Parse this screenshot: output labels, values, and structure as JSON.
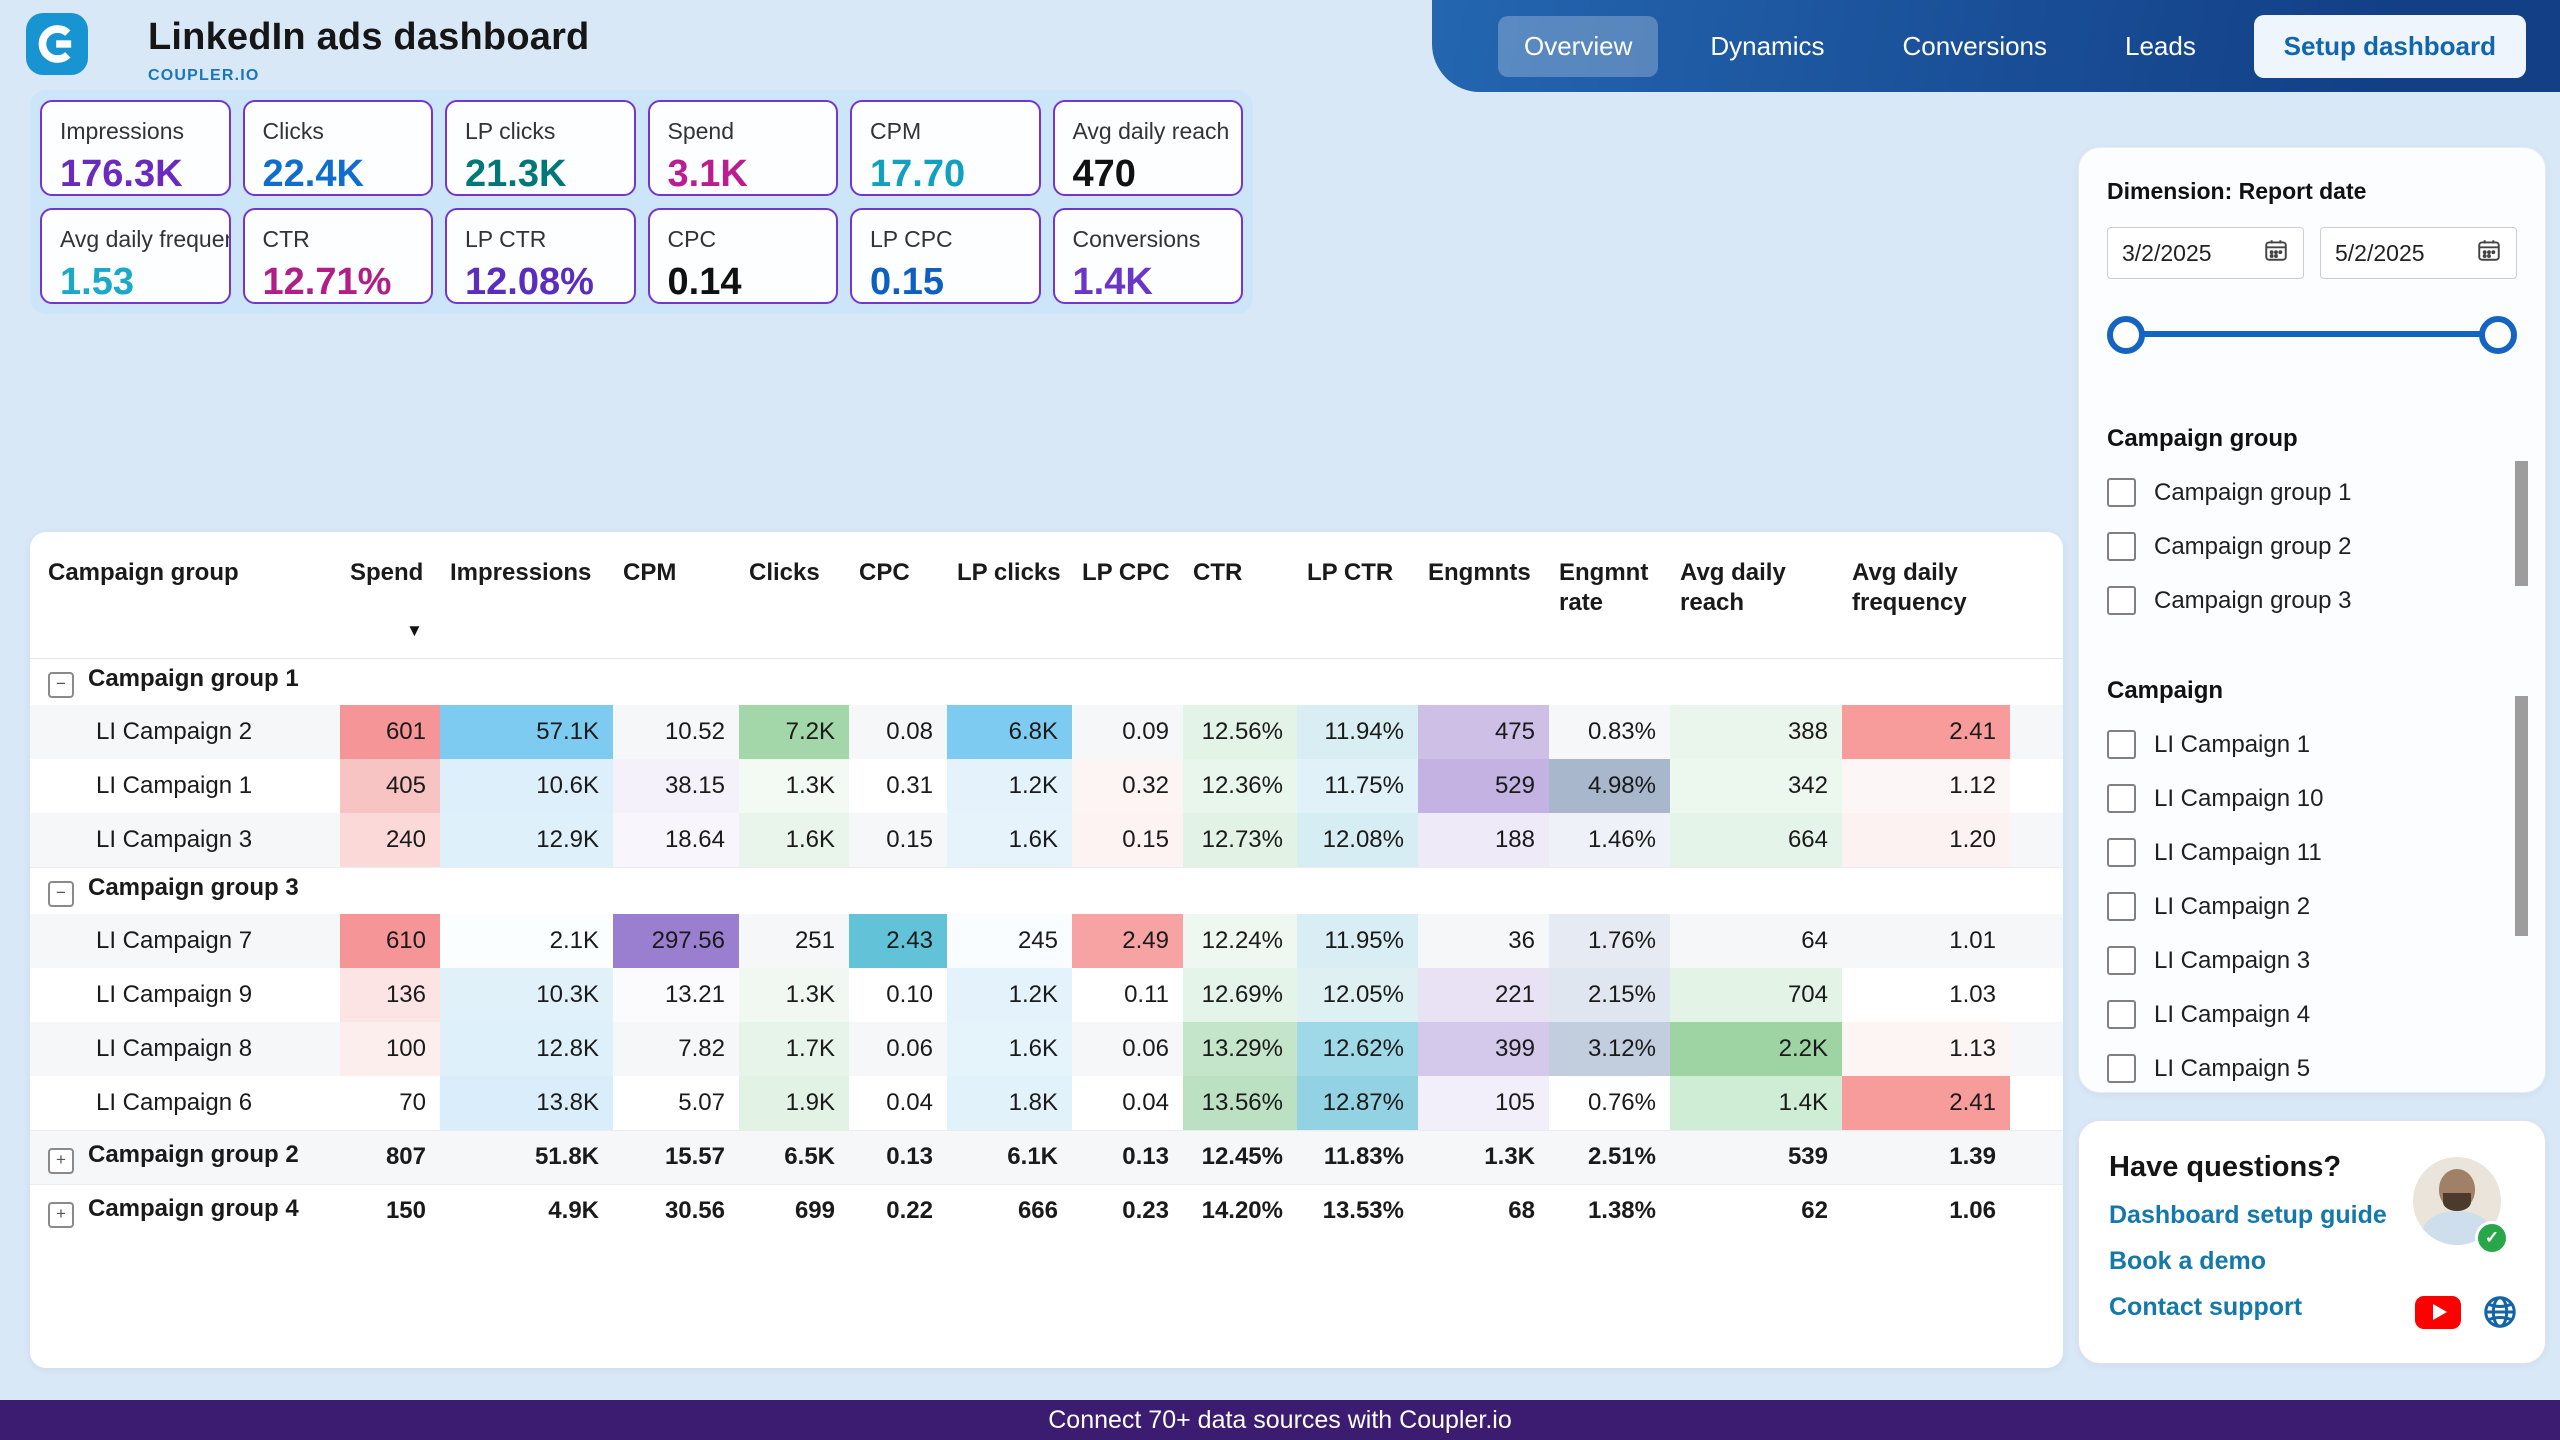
{
  "header": {
    "title": "LinkedIn ads dashboard",
    "brand": "COUPLER.IO",
    "nav": [
      {
        "label": "Overview",
        "active": true
      },
      {
        "label": "Dynamics",
        "active": false
      },
      {
        "label": "Conversions",
        "active": false
      },
      {
        "label": "Leads",
        "active": false
      }
    ],
    "setup_button": "Setup dashboard"
  },
  "kpis": [
    {
      "label": "Impressions",
      "value": "176.3K",
      "color": "#6a2abf"
    },
    {
      "label": "Clicks",
      "value": "22.4K",
      "color": "#0f6ecd"
    },
    {
      "label": "LP clicks",
      "value": "21.3K",
      "color": "#00787a"
    },
    {
      "label": "Spend",
      "value": "3.1K",
      "color": "#bb1c8f"
    },
    {
      "label": "CPM",
      "value": "17.70",
      "color": "#12a0c0"
    },
    {
      "label": "Avg daily reach",
      "value": "470",
      "color": "#111111"
    },
    {
      "label": "Avg daily frequency",
      "value": "1.53",
      "color": "#1ba9c9"
    },
    {
      "label": "CTR",
      "value": "12.71%",
      "color": "#b01e86"
    },
    {
      "label": "LP CTR",
      "value": "12.08%",
      "color": "#5b2dbe"
    },
    {
      "label": "CPC",
      "value": "0.14",
      "color": "#111111"
    },
    {
      "label": "LP CPC",
      "value": "0.15",
      "color": "#0d5fc0"
    },
    {
      "label": "Conversions",
      "value": "1.4K",
      "color": "#6a35c9"
    }
  ],
  "table": {
    "columns": [
      "Campaign group",
      "Spend",
      "Impressions",
      "CPM",
      "Clicks",
      "CPC",
      "LP clicks",
      "LP CPC",
      "CTR",
      "LP CTR",
      "Engmnts",
      "Engmnt rate",
      "Avg daily reach",
      "Avg daily frequency"
    ],
    "sort": {
      "column": "Spend",
      "direction": "desc",
      "glyph": "▼"
    },
    "rows": [
      {
        "type": "group-label",
        "toggle": "−",
        "name": "Campaign group 1",
        "cells": []
      },
      {
        "type": "campaign",
        "name": "LI Campaign 2",
        "cells": [
          {
            "v": "601",
            "bg": "#f59598"
          },
          {
            "v": "57.1K",
            "bg": "#7ecbf1"
          },
          {
            "v": "10.52"
          },
          {
            "v": "7.2K",
            "bg": "#a3d6a8"
          },
          {
            "v": "0.08"
          },
          {
            "v": "6.8K",
            "bg": "#7ecbf1"
          },
          {
            "v": "0.09"
          },
          {
            "v": "12.56%",
            "bg": "#e3f3e6"
          },
          {
            "v": "11.94%",
            "bg": "#d9eef3"
          },
          {
            "v": "475",
            "bg": "#cdbfe6"
          },
          {
            "v": "0.83%"
          },
          {
            "v": "388",
            "bg": "#eaf6ec"
          },
          {
            "v": "2.41",
            "bg": "#f89b9b"
          }
        ]
      },
      {
        "type": "campaign",
        "name": "LI Campaign 1",
        "cells": [
          {
            "v": "405",
            "bg": "#f8c3c3"
          },
          {
            "v": "10.6K",
            "bg": "#ddeffa"
          },
          {
            "v": "38.15",
            "bg": "#f4f1fa"
          },
          {
            "v": "1.3K",
            "bg": "#f3faf4"
          },
          {
            "v": "0.31"
          },
          {
            "v": "1.2K",
            "bg": "#e3f2fb"
          },
          {
            "v": "0.32",
            "bg": "#fdf4f4"
          },
          {
            "v": "12.36%",
            "bg": "#e9f6eb"
          },
          {
            "v": "11.75%",
            "bg": "#e0f1f7"
          },
          {
            "v": "529",
            "bg": "#c3b2e2"
          },
          {
            "v": "4.98%",
            "bg": "#a8b7cb"
          },
          {
            "v": "342",
            "bg": "#ecf7ee"
          },
          {
            "v": "1.12",
            "bg": "#fdf6f6"
          }
        ]
      },
      {
        "type": "campaign",
        "name": "LI Campaign 3",
        "cells": [
          {
            "v": "240",
            "bg": "#fbd9d9"
          },
          {
            "v": "12.9K",
            "bg": "#def0fa"
          },
          {
            "v": "18.64",
            "bg": "#f8f6fc"
          },
          {
            "v": "1.6K",
            "bg": "#e9f5ea"
          },
          {
            "v": "0.15"
          },
          {
            "v": "1.6K",
            "bg": "#e6f3fb"
          },
          {
            "v": "0.15",
            "bg": "#fdf3f3"
          },
          {
            "v": "12.73%",
            "bg": "#e2f3e5"
          },
          {
            "v": "12.08%",
            "bg": "#d7edf4"
          },
          {
            "v": "188",
            "bg": "#efeaf8"
          },
          {
            "v": "1.46%",
            "bg": "#eef2f8"
          },
          {
            "v": "664",
            "bg": "#e5f4e8"
          },
          {
            "v": "1.20",
            "bg": "#fdf2f2"
          }
        ]
      },
      {
        "type": "group-label",
        "toggle": "−",
        "name": "Campaign group 3",
        "cells": []
      },
      {
        "type": "campaign",
        "name": "LI Campaign 7",
        "cells": [
          {
            "v": "610",
            "bg": "#f59598"
          },
          {
            "v": "2.1K",
            "bg": "#fbfeff"
          },
          {
            "v": "297.56",
            "bg": "#9a7fd0"
          },
          {
            "v": "251"
          },
          {
            "v": "2.43",
            "bg": "#62c3d8"
          },
          {
            "v": "245",
            "bg": "#fafdff"
          },
          {
            "v": "2.49",
            "bg": "#f7a3a3"
          },
          {
            "v": "12.24%",
            "bg": "#eef8f0"
          },
          {
            "v": "11.95%",
            "bg": "#d9eef4"
          },
          {
            "v": "36"
          },
          {
            "v": "1.76%",
            "bg": "#e6ebf3"
          },
          {
            "v": "64"
          },
          {
            "v": "1.01"
          }
        ]
      },
      {
        "type": "campaign",
        "name": "LI Campaign 9",
        "cells": [
          {
            "v": "136",
            "bg": "#fce4e4"
          },
          {
            "v": "10.3K",
            "bg": "#e0f1fa"
          },
          {
            "v": "13.21",
            "bg": "#fbfafd"
          },
          {
            "v": "1.3K",
            "bg": "#f0f8f1"
          },
          {
            "v": "0.10"
          },
          {
            "v": "1.2K",
            "bg": "#e4f3fb"
          },
          {
            "v": "0.11"
          },
          {
            "v": "12.69%",
            "bg": "#e5f4e8"
          },
          {
            "v": "12.05%",
            "bg": "#dff0f2"
          },
          {
            "v": "221",
            "bg": "#e9e2f5"
          },
          {
            "v": "2.15%",
            "bg": "#dfe6f0"
          },
          {
            "v": "704",
            "bg": "#e3f3e6"
          },
          {
            "v": "1.03"
          }
        ]
      },
      {
        "type": "campaign",
        "name": "LI Campaign 8",
        "cells": [
          {
            "v": "100",
            "bg": "#fdeeee"
          },
          {
            "v": "12.8K",
            "bg": "#def0fa"
          },
          {
            "v": "7.82"
          },
          {
            "v": "1.7K",
            "bg": "#e7f4e9"
          },
          {
            "v": "0.06"
          },
          {
            "v": "1.6K",
            "bg": "#e5f3fb"
          },
          {
            "v": "0.06"
          },
          {
            "v": "13.29%",
            "bg": "#c4e5c9"
          },
          {
            "v": "12.62%",
            "bg": "#9fd8e6"
          },
          {
            "v": "399",
            "bg": "#d5c9eb"
          },
          {
            "v": "3.12%",
            "bg": "#c2cddd"
          },
          {
            "v": "2.2K",
            "bg": "#9ed3a4"
          },
          {
            "v": "1.13",
            "bg": "#fdf4f4"
          }
        ]
      },
      {
        "type": "campaign",
        "name": "LI Campaign 6",
        "cells": [
          {
            "v": "70"
          },
          {
            "v": "13.8K",
            "bg": "#d9eefa"
          },
          {
            "v": "5.07"
          },
          {
            "v": "1.9K",
            "bg": "#e2f2e4"
          },
          {
            "v": "0.04"
          },
          {
            "v": "1.8K",
            "bg": "#e2f2fb"
          },
          {
            "v": "0.04"
          },
          {
            "v": "13.56%",
            "bg": "#bce1c2"
          },
          {
            "v": "12.87%",
            "bg": "#92d2e2"
          },
          {
            "v": "105",
            "bg": "#f3effa"
          },
          {
            "v": "0.76%"
          },
          {
            "v": "1.4K",
            "bg": "#cfecd4"
          },
          {
            "v": "2.41",
            "bg": "#f89b9b"
          }
        ]
      },
      {
        "type": "group-agg",
        "toggle": "+",
        "name": "Campaign group 2",
        "cells": [
          {
            "v": "807"
          },
          {
            "v": "51.8K"
          },
          {
            "v": "15.57"
          },
          {
            "v": "6.5K"
          },
          {
            "v": "0.13"
          },
          {
            "v": "6.1K"
          },
          {
            "v": "0.13"
          },
          {
            "v": "12.45%"
          },
          {
            "v": "11.83%"
          },
          {
            "v": "1.3K"
          },
          {
            "v": "2.51%"
          },
          {
            "v": "539"
          },
          {
            "v": "1.39"
          }
        ]
      },
      {
        "type": "group-agg",
        "toggle": "+",
        "name": "Campaign group 4",
        "cells": [
          {
            "v": "150"
          },
          {
            "v": "4.9K"
          },
          {
            "v": "30.56"
          },
          {
            "v": "699"
          },
          {
            "v": "0.22"
          },
          {
            "v": "666"
          },
          {
            "v": "0.23"
          },
          {
            "v": "14.20%"
          },
          {
            "v": "13.53%"
          },
          {
            "v": "68"
          },
          {
            "v": "1.38%"
          },
          {
            "v": "62"
          },
          {
            "v": "1.06"
          }
        ]
      }
    ]
  },
  "sidebar": {
    "dimension_label": "Dimension: Report date",
    "date_from": "3/2/2025",
    "date_to": "5/2/2025",
    "campaign_group_label": "Campaign group",
    "campaign_groups": [
      "Campaign group 1",
      "Campaign group 2",
      "Campaign group 3"
    ],
    "campaign_label": "Campaign",
    "campaigns": [
      "LI Campaign 1",
      "LI Campaign 10",
      "LI Campaign 11",
      "LI Campaign 2",
      "LI Campaign 3",
      "LI Campaign 4",
      "LI Campaign 5"
    ],
    "help": {
      "title": "Have questions?",
      "links": [
        "Dashboard setup guide",
        "Book a demo",
        "Contact support"
      ]
    }
  },
  "footer": {
    "text": "Connect 70+ data sources with Coupler.io"
  },
  "colors": {
    "page_bg": "#d9e8f6",
    "kpi_panel_bg": "#cde5f8",
    "card_border": "#7435cf",
    "nav_gradient_start": "#2466b0",
    "nav_gradient_end": "#123f86",
    "footer_bg": "#3b1c70",
    "link_blue": "#1478ab",
    "logo_blue": "#1794d1",
    "slider_blue": "#1464c0"
  }
}
